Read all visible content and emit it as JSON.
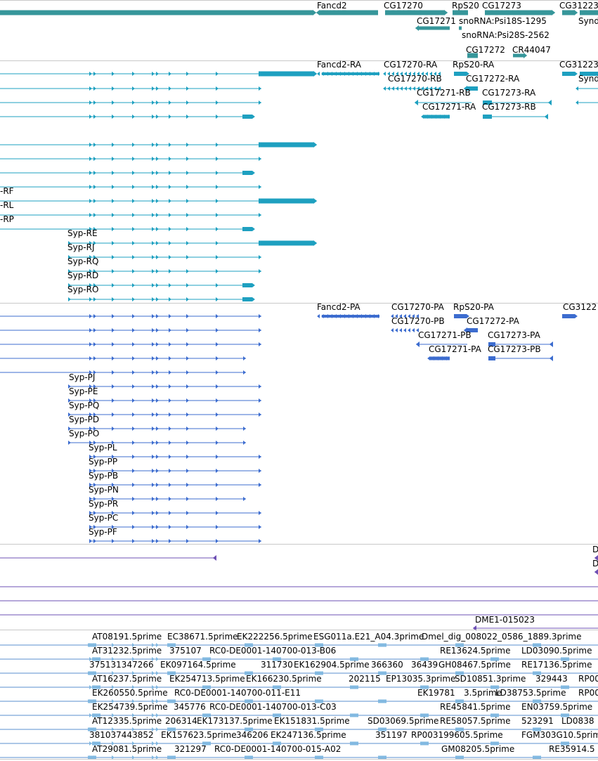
{
  "colors": {
    "gene": "#36969a",
    "mrna": "#1ea0c0",
    "cds": "#3c6ccf",
    "est_purple": "#6e50b4",
    "est_light": "#82b9e1",
    "separator": "#c9c9c9"
  },
  "tracks": {
    "genes": {
      "labels": [
        "Fancd2",
        "CG17270",
        "RpS20",
        "CG17273",
        "CG31223",
        "CG17271",
        "snoRNA:Psi18S-1295",
        "Synd",
        "snoRNA:Psi28S-2562",
        "CG17272",
        "CR44047"
      ]
    },
    "transcripts": {
      "labels": [
        "Fancd2-RA",
        "CG17270-RA",
        "RpS20-RA",
        "CG31223",
        "CG17270-RB",
        "CG17272-RA",
        "Synd",
        "CG17271-RB",
        "CG17273-RA",
        "CG17271-RA",
        "CG17273-RB",
        "-RF",
        "-RL",
        "-RP",
        "Syp-RE",
        "Syp-RJ",
        "Syp-RQ",
        "Syp-RD",
        "Syp-RO"
      ]
    },
    "proteins": {
      "labels": [
        "Fancd2-PA",
        "CG17270-PA",
        "RpS20-PA",
        "CG3122",
        "CG17270-PB",
        "CG17272-PA",
        "CG17271-PB",
        "CG17273-PA",
        "CG17271-PA",
        "CG17273-PB",
        "Syp-PJ",
        "Syp-PE",
        "Syp-PQ",
        "Syp-PD",
        "Syp-PO",
        "Syp-PL",
        "Syp-PP",
        "Syp-PB",
        "Syp-PN",
        "Syp-PR",
        "Syp-PC",
        "Syp-PF"
      ]
    },
    "purple": {
      "labels": [
        "D",
        "D",
        "DME1-015023"
      ]
    },
    "ests": {
      "labels": [
        "AT08191.5prime",
        "EC38671.5prime",
        "EK222256.5prime",
        "ESG011a.E21_A04.3prime",
        "Dmel_dig_008022_0586_1889.3prime",
        "AT31232.5prime",
        "375107",
        "RC0-DE0001-140700-013-B06",
        "RE13624.5prime",
        "LD03090.5prime",
        "375131347266",
        "EK097164.5prime",
        "311730",
        "EK162904.5prime",
        "366360",
        "36439",
        "GH08467.5prime",
        "RE17136.5prime",
        "AT16237.5prime",
        "EK254713.5prime",
        "EK166230.5prime",
        "202115",
        "EP13035.3prime",
        "SD10851.3prime",
        "329443",
        "RP00",
        "EK260550.5prime",
        "RC0-DE0001-140700-011-E11",
        "EK19781",
        "3.5prime",
        "LD38753.5prime",
        "RP00",
        "EK254739.5prime",
        "345776",
        "RC0-DE0001-140700-013-C03",
        "RE45841.5prime",
        "EN03759.5prime",
        "AT12335.5prime",
        "206314",
        "EK173137.5prime",
        "EK151831.5prime",
        "SD03069.5prime",
        "RE58057.5prime",
        "523291",
        "LD0838",
        "381037443852",
        "EK157623.5prime",
        "346206",
        "EK247136.5prime",
        "351197",
        "RP003199605.5prime",
        "FGM303G10.5prime",
        "AT29081.5prime",
        "321297",
        "RC0-DE0001-140700-015-A02",
        "GM08205.5prime",
        "RE35914.5"
      ]
    }
  }
}
